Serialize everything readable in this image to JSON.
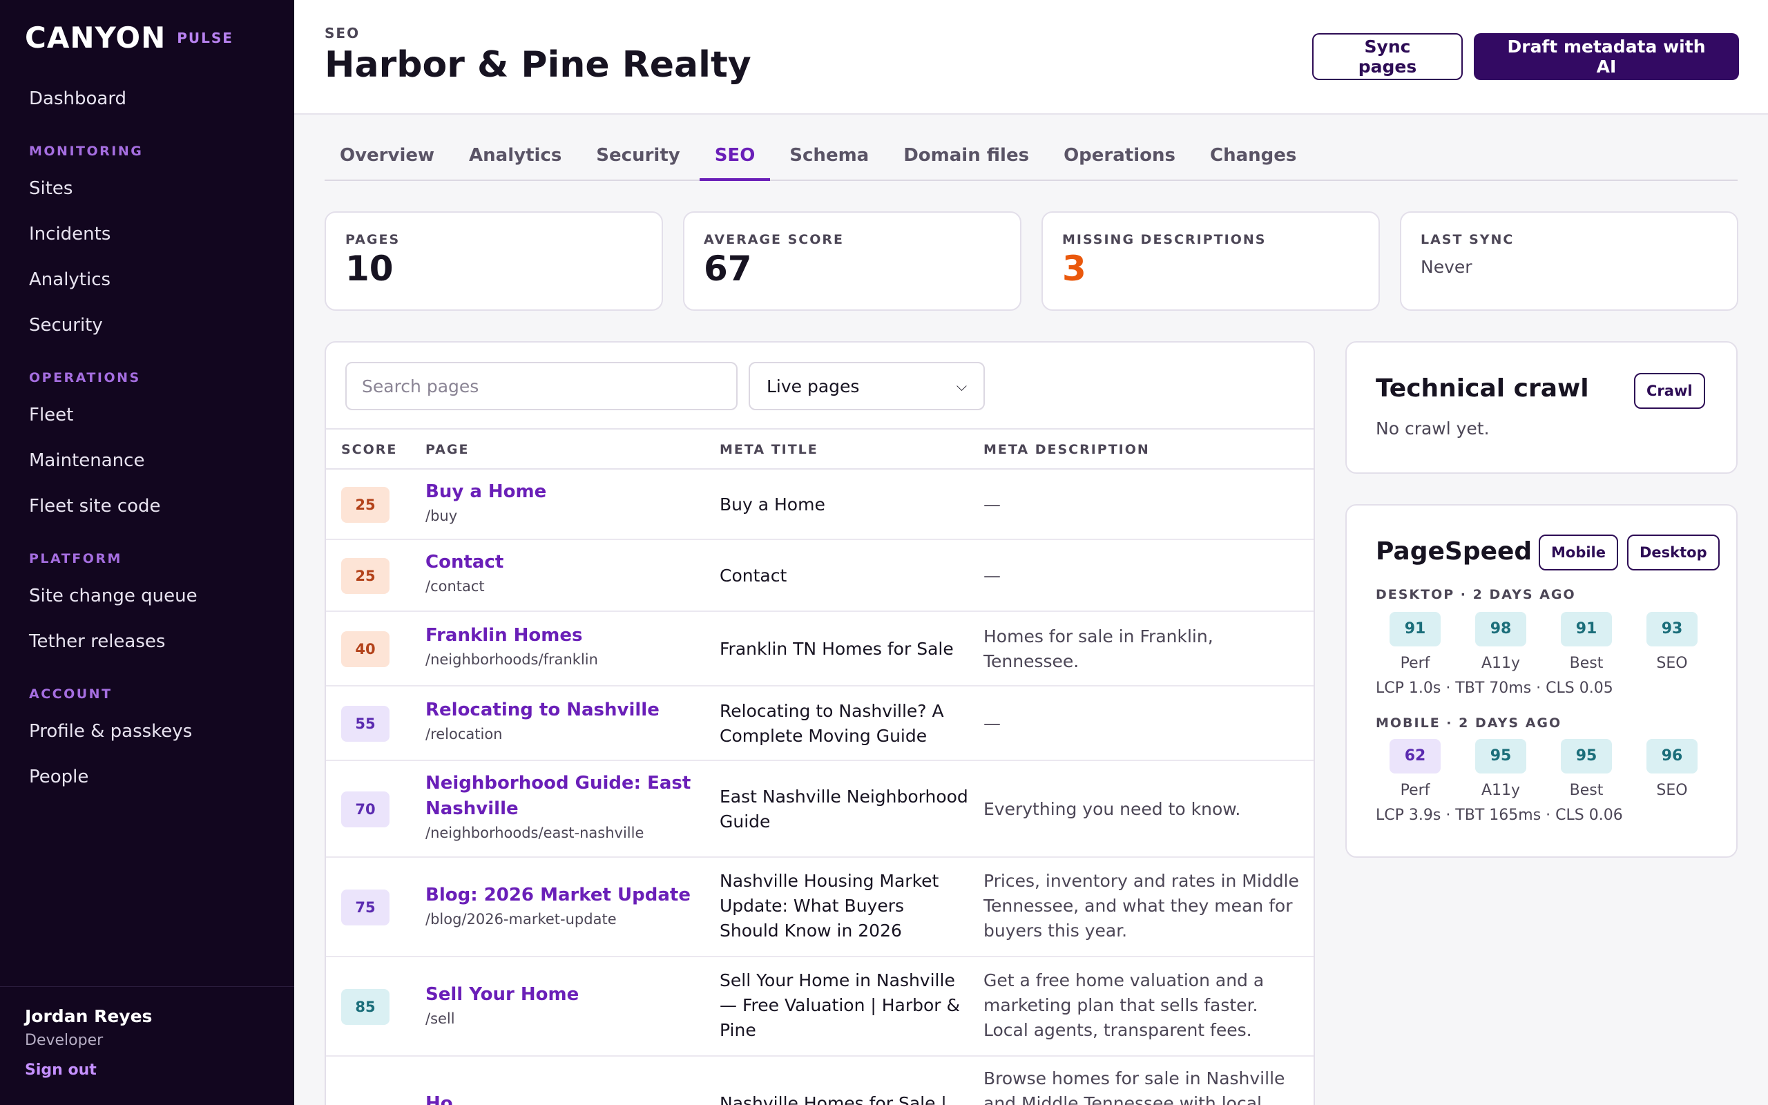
{
  "brand": {
    "name": "CANYON",
    "product": "PULSE"
  },
  "nav": {
    "top": [
      {
        "label": "Dashboard"
      }
    ],
    "sections": [
      {
        "title": "MONITORING",
        "items": [
          {
            "label": "Sites"
          },
          {
            "label": "Incidents"
          },
          {
            "label": "Analytics"
          },
          {
            "label": "Security"
          }
        ]
      },
      {
        "title": "OPERATIONS",
        "items": [
          {
            "label": "Fleet"
          },
          {
            "label": "Maintenance"
          },
          {
            "label": "Fleet site code"
          }
        ]
      },
      {
        "title": "PLATFORM",
        "items": [
          {
            "label": "Site change queue"
          },
          {
            "label": "Tether releases"
          }
        ]
      },
      {
        "title": "ACCOUNT",
        "items": [
          {
            "label": "Profile & passkeys"
          },
          {
            "label": "People"
          }
        ]
      }
    ]
  },
  "user": {
    "name": "Jordan Reyes",
    "role": "Developer",
    "signout": "Sign out"
  },
  "header": {
    "eyebrow": "SEO",
    "title": "Harbor & Pine Realty",
    "sync_label": "Sync pages",
    "draft_label": "Draft metadata with AI"
  },
  "tabs": [
    {
      "label": "Overview",
      "active": false
    },
    {
      "label": "Analytics",
      "active": false
    },
    {
      "label": "Security",
      "active": false
    },
    {
      "label": "SEO",
      "active": true
    },
    {
      "label": "Schema",
      "active": false
    },
    {
      "label": "Domain files",
      "active": false
    },
    {
      "label": "Operations",
      "active": false
    },
    {
      "label": "Changes",
      "active": false
    }
  ],
  "stats": {
    "pages": {
      "label": "PAGES",
      "value": "10"
    },
    "avg": {
      "label": "AVERAGE SCORE",
      "value": "67"
    },
    "missing": {
      "label": "MISSING DESCRIPTIONS",
      "value": "3"
    },
    "sync": {
      "label": "LAST SYNC",
      "value": "Never"
    }
  },
  "table": {
    "search_placeholder": "Search pages",
    "filter_value": "Live pages",
    "columns": {
      "score": "SCORE",
      "page": "PAGE",
      "meta_title": "META TITLE",
      "meta_description": "META DESCRIPTION"
    },
    "rows": [
      {
        "score": "25",
        "name": "Buy a Home",
        "path": "/buy",
        "title": "Buy a Home",
        "desc": "—"
      },
      {
        "score": "25",
        "name": "Contact",
        "path": "/contact",
        "title": "Contact",
        "desc": "—"
      },
      {
        "score": "40",
        "name": "Franklin Homes",
        "path": "/neighborhoods/franklin",
        "title": "Franklin TN Homes for Sale",
        "desc": "Homes for sale in Franklin, Tennessee."
      },
      {
        "score": "55",
        "name": "Relocating to Nashville",
        "path": "/relocation",
        "title": "Relocating to Nashville? A Complete Moving Guide",
        "desc": "—"
      },
      {
        "score": "70",
        "name": "Neighborhood Guide: East Nashville",
        "path": "/neighborhoods/east-nashville",
        "title": "East Nashville Neighborhood Guide",
        "desc": "Everything you need to know."
      },
      {
        "score": "75",
        "name": "Blog: 2026 Market Update",
        "path": "/blog/2026-market-update",
        "title": "Nashville Housing Market Update: What Buyers Should Know in 2026",
        "desc": "Prices, inventory and rates in Middle Tennessee, and what they mean for buyers this year."
      },
      {
        "score": "85",
        "name": "Sell Your Home",
        "path": "/sell",
        "title": "Sell Your Home in Nashville — Free Valuation | Harbor & Pine",
        "desc": "Get a free home valuation and a marketing plan that sells faster. Local agents, transparent fees."
      },
      {
        "score": "",
        "name": "Ho...",
        "path": "",
        "title": "Nashville Homes for Sale |",
        "desc": "Browse homes for sale in Nashville and Middle Tennessee with local"
      }
    ]
  },
  "crawl": {
    "title": "Technical crawl",
    "button": "Crawl",
    "status": "No crawl yet."
  },
  "pagespeed": {
    "title": "PageSpeed",
    "mobile_label": "Mobile",
    "desktop_label": "Desktop",
    "desktop": {
      "heading": "DESKTOP · 2 DAYS AGO",
      "metrics": [
        {
          "value": "91",
          "label": "Perf"
        },
        {
          "value": "98",
          "label": "A11y"
        },
        {
          "value": "91",
          "label": "Best"
        },
        {
          "value": "93",
          "label": "SEO"
        }
      ],
      "vitals": "LCP 1.0s · TBT 70ms · CLS 0.05"
    },
    "mobile": {
      "heading": "MOBILE · 2 DAYS AGO",
      "metrics": [
        {
          "value": "62",
          "label": "Perf"
        },
        {
          "value": "95",
          "label": "A11y"
        },
        {
          "value": "95",
          "label": "Best"
        },
        {
          "value": "96",
          "label": "SEO"
        }
      ],
      "vitals": "LCP 3.9s · TBT 165ms · CLS 0.06"
    }
  },
  "colors": {
    "accent": "#6a1fb8",
    "sidebar": "#12061f",
    "primary_button": "#330a63",
    "warning": "#ea580c"
  }
}
